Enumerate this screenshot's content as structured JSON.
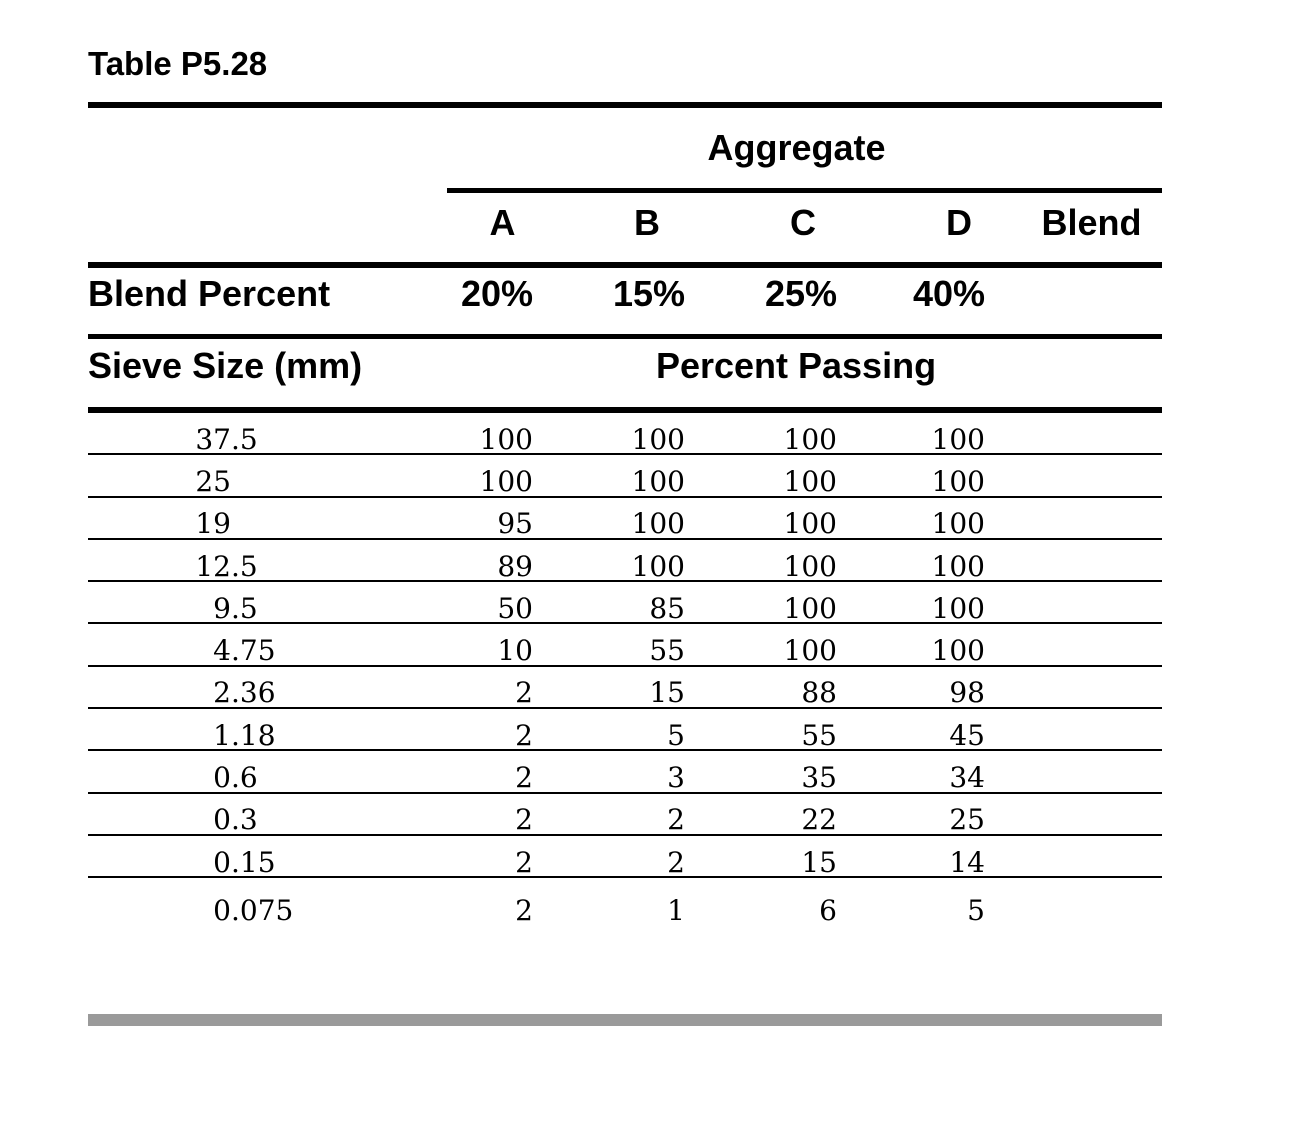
{
  "title": "Table P5.28",
  "table": {
    "aggregate_header": "Aggregate",
    "column_headers": [
      "A",
      "B",
      "C",
      "D",
      "Blend"
    ],
    "blend_row": {
      "label": "Blend Percent",
      "values": [
        "20%",
        "15%",
        "25%",
        "40%",
        ""
      ]
    },
    "section_row": {
      "sieve_label": "Sieve Size (mm)",
      "passing_label": "Percent Passing"
    },
    "rows": [
      {
        "sieve": "37.5",
        "values": [
          "100",
          "100",
          "100",
          "100",
          ""
        ]
      },
      {
        "sieve": "25",
        "values": [
          "100",
          "100",
          "100",
          "100",
          ""
        ]
      },
      {
        "sieve": "19",
        "values": [
          "95",
          "100",
          "100",
          "100",
          ""
        ]
      },
      {
        "sieve": "12.5",
        "values": [
          "89",
          "100",
          "100",
          "100",
          ""
        ]
      },
      {
        "sieve": "9.5",
        "values": [
          "50",
          "85",
          "100",
          "100",
          ""
        ]
      },
      {
        "sieve": "4.75",
        "values": [
          "10",
          "55",
          "100",
          "100",
          ""
        ]
      },
      {
        "sieve": "2.36",
        "values": [
          "2",
          "15",
          "88",
          "98",
          ""
        ]
      },
      {
        "sieve": "1.18",
        "values": [
          "2",
          "5",
          "55",
          "45",
          ""
        ]
      },
      {
        "sieve": "0.6",
        "values": [
          "2",
          "3",
          "35",
          "34",
          ""
        ]
      },
      {
        "sieve": "0.3",
        "values": [
          "2",
          "2",
          "22",
          "25",
          ""
        ]
      },
      {
        "sieve": "0.15",
        "values": [
          "2",
          "2",
          "15",
          "14",
          ""
        ]
      },
      {
        "sieve": "0.075",
        "values": [
          "2",
          "1",
          "6",
          "5",
          ""
        ]
      }
    ]
  },
  "colors": {
    "text": "#000000",
    "rule": "#000000",
    "footer_bar": "#9a9a9a",
    "background": "#ffffff"
  }
}
